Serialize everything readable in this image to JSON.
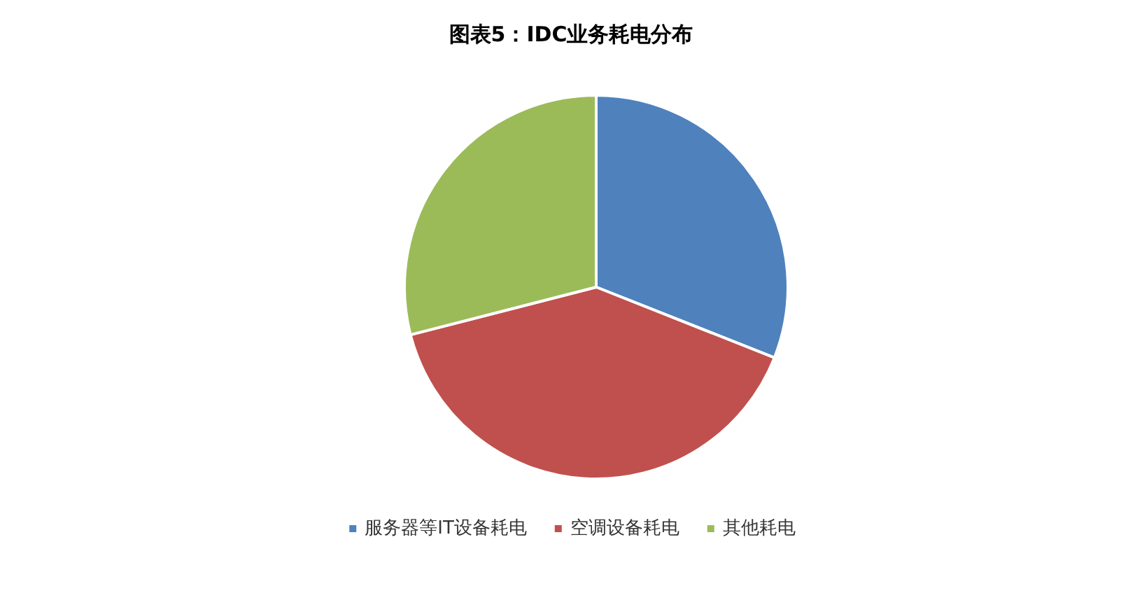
{
  "chart_data": {
    "type": "pie",
    "title": "图表5：IDC业务耗电分布",
    "categories": [
      "服务器等IT设备耗电",
      "空调设备耗电",
      "其他耗电"
    ],
    "values": [
      31,
      40,
      29
    ],
    "colors": [
      "#4f81bd",
      "#c0504d",
      "#9bbb59"
    ],
    "legend": "bottom"
  }
}
